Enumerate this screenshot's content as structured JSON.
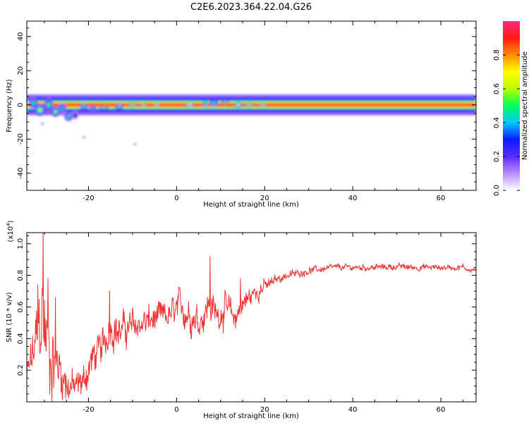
{
  "title": "C2E6.2023.364.22.04.G26",
  "colorbar": {
    "label": "Normalized spectral amplitude",
    "ticks": [
      "0.0",
      "0.2",
      "0.4",
      "0.6",
      "0.8"
    ],
    "tick_values": [
      0.0,
      0.2,
      0.4,
      0.6,
      0.8
    ],
    "range": [
      0,
      1
    ]
  },
  "chart_data": [
    {
      "type": "heatmap",
      "name": "spectrogram",
      "xlabel": "Height of straight line (km)",
      "ylabel": "Frequency (Hz)",
      "xlim": [
        -34,
        68
      ],
      "ylim": [
        -50,
        49
      ],
      "xticks": [
        -20,
        0,
        20,
        40,
        60
      ],
      "yticks": [
        -40,
        -20,
        0,
        20,
        40
      ],
      "xticklabels": [
        "-20",
        "0",
        "20",
        "40",
        "60"
      ],
      "yticklabels": [
        "-40",
        "-20",
        "0",
        "20",
        "40"
      ],
      "colormap": [
        "#ffffff",
        "#b98cff",
        "#5a2cff",
        "#0a1cff",
        "#00c8ff",
        "#00ff5a",
        "#b8ff00",
        "#ffff00",
        "#ff8c00",
        "#ff1a1a",
        "#ff2a7a"
      ],
      "dominant_frequency_hz": 0,
      "blobs": [
        {
          "x": -32.5,
          "y": 1,
          "w": 2,
          "h": 6,
          "a": 0.5
        },
        {
          "x": -31,
          "y": -3,
          "w": 2.5,
          "h": 7,
          "a": 0.65
        },
        {
          "x": -29,
          "y": 0,
          "w": 2,
          "h": 8,
          "a": 0.55
        },
        {
          "x": -27.5,
          "y": -4,
          "w": 2,
          "h": 6,
          "a": 0.6
        },
        {
          "x": -26,
          "y": -2,
          "w": 2,
          "h": 6,
          "a": 0.45
        },
        {
          "x": -24.5,
          "y": -7,
          "w": 2,
          "h": 5,
          "a": 0.5
        },
        {
          "x": -23,
          "y": -6,
          "w": 1.5,
          "h": 5,
          "a": 0.35
        },
        {
          "x": -21,
          "y": -1,
          "w": 1.8,
          "h": 4,
          "a": 0.55
        },
        {
          "x": -19,
          "y": -2,
          "w": 1.8,
          "h": 3,
          "a": 0.45
        },
        {
          "x": -16.5,
          "y": -1.5,
          "w": 2,
          "h": 2.5,
          "a": 0.95
        },
        {
          "x": -13,
          "y": -1,
          "w": 2,
          "h": 3,
          "a": 0.6
        },
        {
          "x": -10,
          "y": 0,
          "w": 2,
          "h": 2.5,
          "a": 0.9
        },
        {
          "x": -7.5,
          "y": 0,
          "w": 1.5,
          "h": 2,
          "a": 0.85
        },
        {
          "x": -4.5,
          "y": 0,
          "w": 1.5,
          "h": 2,
          "a": 0.8
        },
        {
          "x": 3,
          "y": 0,
          "w": 2,
          "h": 2,
          "a": 0.7
        },
        {
          "x": 6.5,
          "y": 0.5,
          "w": 1.5,
          "h": 3,
          "a": 0.6
        },
        {
          "x": 8.5,
          "y": 1,
          "w": 2,
          "h": 4,
          "a": 0.55
        },
        {
          "x": 11,
          "y": 1.5,
          "w": 1.5,
          "h": 3,
          "a": 0.95
        },
        {
          "x": 14,
          "y": 0,
          "w": 2,
          "h": 3,
          "a": 0.7
        },
        {
          "x": 16.5,
          "y": 0,
          "w": 2,
          "h": 2.5,
          "a": 0.9
        },
        {
          "x": 19.5,
          "y": 0,
          "w": 2,
          "h": 2,
          "a": 0.85
        }
      ],
      "outliers": [
        {
          "x": -21,
          "y": -19,
          "w": 1,
          "h": 1.5,
          "a": 0.15
        },
        {
          "x": -9.5,
          "y": -23,
          "w": 1.2,
          "h": 1,
          "a": 0.15
        },
        {
          "x": -30.5,
          "y": -11,
          "w": 1,
          "h": 1.5,
          "a": 0.15
        }
      ]
    },
    {
      "type": "line",
      "name": "snr",
      "xlabel": "Height of straight line (km)",
      "ylabel": "SNR (10 * v/v)",
      "ylabel_multiplier": "(x10",
      "ylabel_exponent": "4",
      "ylabel_multiplier_close": ")",
      "xlim": [
        -34,
        68
      ],
      "ylim": [
        0,
        1.07
      ],
      "xticks": [
        -20,
        0,
        20,
        40,
        60
      ],
      "yticks": [
        0.2,
        0.4,
        0.6,
        0.8,
        1.0
      ],
      "xticklabels": [
        "-20",
        "0",
        "20",
        "40",
        "60"
      ],
      "yticklabels": [
        "0.2",
        "0.4",
        "0.6",
        "0.8",
        "1.0"
      ],
      "color": "#ee3333",
      "x_step": 0.1,
      "control_points": [
        [
          -34,
          0.15
        ],
        [
          -32,
          0.35
        ],
        [
          -30.5,
          0.55
        ],
        [
          -29,
          0.3
        ],
        [
          -27,
          0.25
        ],
        [
          -25,
          0.12
        ],
        [
          -23,
          0.08
        ],
        [
          -21,
          0.14
        ],
        [
          -19,
          0.28
        ],
        [
          -17,
          0.32
        ],
        [
          -15,
          0.5
        ],
        [
          -13,
          0.44
        ],
        [
          -11,
          0.47
        ],
        [
          -9,
          0.49
        ],
        [
          -7,
          0.5
        ],
        [
          -5,
          0.52
        ],
        [
          -3,
          0.53
        ],
        [
          -1,
          0.55
        ],
        [
          1,
          0.6
        ],
        [
          3,
          0.56
        ],
        [
          5,
          0.52
        ],
        [
          7.5,
          0.62
        ],
        [
          9,
          0.55
        ],
        [
          11,
          0.6
        ],
        [
          13,
          0.52
        ],
        [
          15,
          0.62
        ],
        [
          17,
          0.67
        ],
        [
          19,
          0.72
        ],
        [
          21,
          0.74
        ],
        [
          23,
          0.78
        ],
        [
          25,
          0.8
        ],
        [
          27,
          0.81
        ],
        [
          30,
          0.83
        ],
        [
          33,
          0.84
        ],
        [
          36,
          0.85
        ],
        [
          40,
          0.85
        ],
        [
          45,
          0.85
        ],
        [
          50,
          0.855
        ],
        [
          55,
          0.85
        ],
        [
          60,
          0.85
        ],
        [
          65,
          0.85
        ],
        [
          68,
          0.83
        ]
      ],
      "noise_points": [
        [
          -34,
          0.1
        ],
        [
          -30,
          0.35
        ],
        [
          -26,
          0.15
        ],
        [
          -22,
          0.1
        ],
        [
          -18,
          0.12
        ],
        [
          -14,
          0.12
        ],
        [
          -10,
          0.1
        ],
        [
          -6,
          0.1
        ],
        [
          -2,
          0.09
        ],
        [
          2,
          0.11
        ],
        [
          6,
          0.11
        ],
        [
          10,
          0.1
        ],
        [
          14,
          0.09
        ],
        [
          18,
          0.06
        ],
        [
          22,
          0.035
        ],
        [
          26,
          0.025
        ],
        [
          35,
          0.02
        ],
        [
          68,
          0.02
        ]
      ],
      "spikes": [
        {
          "x": -30.3,
          "y": 1.07
        },
        {
          "x": -31.5,
          "y": 0.74
        },
        {
          "x": -29.2,
          "y": 0.78
        },
        {
          "x": -27.5,
          "y": 0.66
        },
        {
          "x": 7.6,
          "y": 0.92
        },
        {
          "x": -15.2,
          "y": 0.7
        },
        {
          "x": 14.5,
          "y": 0.78
        }
      ]
    }
  ]
}
